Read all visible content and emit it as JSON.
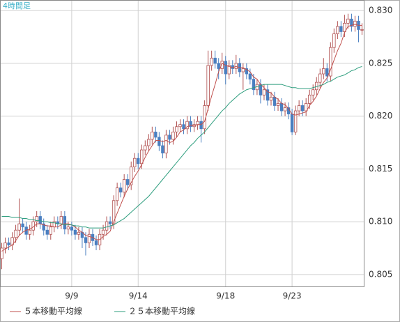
{
  "chart_data": {
    "type": "candlestick",
    "title": "4時間足",
    "categories": [
      null,
      null,
      null,
      null,
      null,
      null,
      null,
      null,
      null,
      null,
      null,
      null,
      null,
      null,
      null,
      null,
      null,
      null,
      null,
      null,
      "9/9",
      null,
      null,
      null,
      null,
      null,
      null,
      null,
      null,
      null,
      null,
      null,
      null,
      null,
      null,
      null,
      null,
      null,
      null,
      "9/14",
      null,
      null,
      null,
      null,
      null,
      null,
      null,
      null,
      null,
      null,
      null,
      null,
      null,
      null,
      null,
      null,
      null,
      null,
      null,
      null,
      null,
      null,
      null,
      null,
      "9/18",
      null,
      null,
      null,
      null,
      null,
      null,
      null,
      null,
      null,
      null,
      null,
      null,
      null,
      null,
      null,
      null,
      null,
      null,
      "9/23",
      null,
      null,
      null,
      null,
      null,
      null,
      null,
      null,
      null,
      null,
      null,
      null,
      null,
      null,
      null,
      null,
      null,
      null,
      null,
      null
    ],
    "ohlc": [
      [
        0.8065,
        0.808,
        0.8055,
        0.8075
      ],
      [
        0.8075,
        0.8085,
        0.807,
        0.808
      ],
      [
        0.808,
        0.8085,
        0.8073,
        0.8078
      ],
      [
        0.8078,
        0.809,
        0.8073,
        0.8085
      ],
      [
        0.8085,
        0.8097,
        0.808,
        0.8092
      ],
      [
        0.8092,
        0.8122,
        0.8087,
        0.8098
      ],
      [
        0.8098,
        0.8103,
        0.809,
        0.8095
      ],
      [
        0.8095,
        0.81,
        0.8083,
        0.8088
      ],
      [
        0.8088,
        0.8097,
        0.8083,
        0.8092
      ],
      [
        0.8092,
        0.8105,
        0.8087,
        0.81
      ],
      [
        0.81,
        0.811,
        0.8095,
        0.8105
      ],
      [
        0.8105,
        0.811,
        0.8093,
        0.8098
      ],
      [
        0.8098,
        0.8103,
        0.8087,
        0.8092
      ],
      [
        0.8092,
        0.8097,
        0.8083,
        0.8088
      ],
      [
        0.8088,
        0.81,
        0.8083,
        0.8095
      ],
      [
        0.8095,
        0.8105,
        0.809,
        0.81
      ],
      [
        0.81,
        0.8105,
        0.8093,
        0.8098
      ],
      [
        0.8098,
        0.811,
        0.8093,
        0.8105
      ],
      [
        0.8105,
        0.811,
        0.8088,
        0.8093
      ],
      [
        0.8093,
        0.81,
        0.8088,
        0.8095
      ],
      [
        0.8095,
        0.81,
        0.8087,
        0.8092
      ],
      [
        0.8092,
        0.8097,
        0.8083,
        0.8088
      ],
      [
        0.8088,
        0.8095,
        0.8083,
        0.809
      ],
      [
        0.809,
        0.8095,
        0.8075,
        0.8085
      ],
      [
        0.8085,
        0.809,
        0.8068,
        0.808
      ],
      [
        0.808,
        0.8093,
        0.8075,
        0.8088
      ],
      [
        0.8088,
        0.8093,
        0.8077,
        0.8082
      ],
      [
        0.8082,
        0.8087,
        0.8073,
        0.8078
      ],
      [
        0.8078,
        0.8093,
        0.8073,
        0.8088
      ],
      [
        0.8088,
        0.8097,
        0.8083,
        0.8092
      ],
      [
        0.8092,
        0.8105,
        0.8087,
        0.81
      ],
      [
        0.81,
        0.8105,
        0.8093,
        0.8098
      ],
      [
        0.8098,
        0.8125,
        0.8093,
        0.812
      ],
      [
        0.812,
        0.8137,
        0.8115,
        0.8132
      ],
      [
        0.8132,
        0.8137,
        0.8123,
        0.8128
      ],
      [
        0.8128,
        0.8145,
        0.8123,
        0.814
      ],
      [
        0.814,
        0.8145,
        0.813,
        0.8135
      ],
      [
        0.8135,
        0.8157,
        0.813,
        0.8152
      ],
      [
        0.8152,
        0.8165,
        0.8147,
        0.816
      ],
      [
        0.816,
        0.8165,
        0.815,
        0.8155
      ],
      [
        0.8155,
        0.8173,
        0.815,
        0.8168
      ],
      [
        0.8168,
        0.8177,
        0.8163,
        0.8172
      ],
      [
        0.8172,
        0.8183,
        0.8167,
        0.8178
      ],
      [
        0.8178,
        0.819,
        0.8173,
        0.8185
      ],
      [
        0.8185,
        0.819,
        0.8175,
        0.818
      ],
      [
        0.818,
        0.8185,
        0.8167,
        0.8172
      ],
      [
        0.8172,
        0.8177,
        0.816,
        0.8165
      ],
      [
        0.8165,
        0.8187,
        0.816,
        0.8182
      ],
      [
        0.8182,
        0.8187,
        0.8173,
        0.8178
      ],
      [
        0.8178,
        0.819,
        0.8173,
        0.8185
      ],
      [
        0.8185,
        0.8195,
        0.818,
        0.819
      ],
      [
        0.819,
        0.8197,
        0.8185,
        0.8192
      ],
      [
        0.8192,
        0.8197,
        0.8183,
        0.8188
      ],
      [
        0.8188,
        0.82,
        0.8183,
        0.8195
      ],
      [
        0.8195,
        0.82,
        0.8185,
        0.819
      ],
      [
        0.819,
        0.8197,
        0.8185,
        0.8192
      ],
      [
        0.8192,
        0.82,
        0.8187,
        0.8195
      ],
      [
        0.8195,
        0.82,
        0.8175,
        0.8188
      ],
      [
        0.8188,
        0.8215,
        0.8183,
        0.821
      ],
      [
        0.821,
        0.8262,
        0.8205,
        0.8248
      ],
      [
        0.8248,
        0.8262,
        0.8243,
        0.8255
      ],
      [
        0.8255,
        0.8262,
        0.8245,
        0.825
      ],
      [
        0.825,
        0.8255,
        0.8235,
        0.8245
      ],
      [
        0.8245,
        0.826,
        0.824,
        0.8252
      ],
      [
        0.8252,
        0.8257,
        0.823,
        0.824
      ],
      [
        0.824,
        0.8253,
        0.8235,
        0.8248
      ],
      [
        0.8248,
        0.8253,
        0.824,
        0.8245
      ],
      [
        0.8245,
        0.8258,
        0.824,
        0.825
      ],
      [
        0.825,
        0.8255,
        0.8237,
        0.8242
      ],
      [
        0.8242,
        0.825,
        0.8225,
        0.8245
      ],
      [
        0.8245,
        0.825,
        0.8235,
        0.824
      ],
      [
        0.824,
        0.8245,
        0.823,
        0.8235
      ],
      [
        0.8235,
        0.824,
        0.822,
        0.8225
      ],
      [
        0.8225,
        0.8235,
        0.822,
        0.823
      ],
      [
        0.823,
        0.8235,
        0.8212,
        0.822
      ],
      [
        0.822,
        0.823,
        0.8215,
        0.8225
      ],
      [
        0.8225,
        0.823,
        0.821,
        0.8215
      ],
      [
        0.8215,
        0.8223,
        0.821,
        0.8218
      ],
      [
        0.8218,
        0.8223,
        0.8205,
        0.821
      ],
      [
        0.821,
        0.8217,
        0.8205,
        0.8212
      ],
      [
        0.8212,
        0.8217,
        0.82,
        0.8205
      ],
      [
        0.8205,
        0.8213,
        0.82,
        0.8208
      ],
      [
        0.8208,
        0.8213,
        0.8197,
        0.8202
      ],
      [
        0.8202,
        0.8207,
        0.8182,
        0.8185
      ],
      [
        0.8185,
        0.821,
        0.8182,
        0.8205
      ],
      [
        0.8205,
        0.8215,
        0.82,
        0.821
      ],
      [
        0.821,
        0.8215,
        0.82,
        0.8205
      ],
      [
        0.8205,
        0.8217,
        0.82,
        0.8212
      ],
      [
        0.8212,
        0.8225,
        0.8207,
        0.822
      ],
      [
        0.822,
        0.823,
        0.8215,
        0.8225
      ],
      [
        0.8225,
        0.8237,
        0.822,
        0.8232
      ],
      [
        0.8232,
        0.8245,
        0.8227,
        0.824
      ],
      [
        0.824,
        0.8255,
        0.8235,
        0.8245
      ],
      [
        0.8245,
        0.825,
        0.8233,
        0.8238
      ],
      [
        0.8238,
        0.827,
        0.8233,
        0.8265
      ],
      [
        0.8265,
        0.8283,
        0.826,
        0.8278
      ],
      [
        0.8278,
        0.829,
        0.8273,
        0.8285
      ],
      [
        0.8285,
        0.829,
        0.8275,
        0.828
      ],
      [
        0.828,
        0.8296,
        0.8275,
        0.8288
      ],
      [
        0.8288,
        0.8297,
        0.8283,
        0.8292
      ],
      [
        0.8292,
        0.8297,
        0.828,
        0.8285
      ],
      [
        0.8285,
        0.8295,
        0.828,
        0.829
      ],
      [
        0.829,
        0.8295,
        0.827,
        0.8282
      ],
      [
        0.8282,
        0.8288,
        0.8277,
        0.8282
      ]
    ],
    "up_color": "#b05050",
    "down_color": "#4a7fc0",
    "series": [
      {
        "name": "５本移動平均線",
        "color": "#c0504d",
        "values": [
          0.8072,
          0.8074,
          0.8076,
          0.8078,
          0.8082,
          0.8087,
          0.809,
          0.8092,
          0.8093,
          0.8095,
          0.8098,
          0.8098,
          0.8097,
          0.8096,
          0.8096,
          0.8095,
          0.8095,
          0.8097,
          0.8098,
          0.8098,
          0.8097,
          0.8095,
          0.8092,
          0.809,
          0.8087,
          0.8086,
          0.8085,
          0.8083,
          0.8083,
          0.8086,
          0.8088,
          0.8091,
          0.81,
          0.8108,
          0.8116,
          0.8124,
          0.8131,
          0.8137,
          0.8143,
          0.8148,
          0.8154,
          0.8161,
          0.8167,
          0.8172,
          0.8177,
          0.8177,
          0.8176,
          0.8177,
          0.8175,
          0.8176,
          0.818,
          0.8185,
          0.8187,
          0.819,
          0.8191,
          0.8191,
          0.8192,
          0.8192,
          0.8195,
          0.8207,
          0.8219,
          0.823,
          0.8242,
          0.825,
          0.8248,
          0.8247,
          0.8246,
          0.8247,
          0.8246,
          0.8246,
          0.8244,
          0.8242,
          0.8237,
          0.8235,
          0.823,
          0.8227,
          0.8223,
          0.8222,
          0.8218,
          0.8216,
          0.8212,
          0.8211,
          0.8207,
          0.8202,
          0.8201,
          0.8202,
          0.8203,
          0.8204,
          0.821,
          0.8214,
          0.8219,
          0.8226,
          0.8232,
          0.8236,
          0.8244,
          0.8253,
          0.8262,
          0.8269,
          0.8279,
          0.8285,
          0.8286,
          0.8287,
          0.8286,
          0.8286
        ]
      },
      {
        "name": "２５本移動平均線",
        "color": "#2e9e7e",
        "values": [
          0.8105,
          0.8105,
          0.8105,
          0.8104,
          0.8104,
          0.8104,
          0.8103,
          0.8103,
          0.8102,
          0.8102,
          0.8101,
          0.8101,
          0.81,
          0.81,
          0.8099,
          0.8099,
          0.8098,
          0.8098,
          0.8097,
          0.8097,
          0.8097,
          0.8096,
          0.8096,
          0.8095,
          0.8095,
          0.8094,
          0.8094,
          0.8094,
          0.8094,
          0.8094,
          0.8095,
          0.8096,
          0.8097,
          0.8099,
          0.8101,
          0.8103,
          0.8106,
          0.8109,
          0.8112,
          0.8115,
          0.8118,
          0.8121,
          0.8124,
          0.8128,
          0.8132,
          0.8136,
          0.814,
          0.8144,
          0.8148,
          0.8152,
          0.8156,
          0.816,
          0.8164,
          0.8168,
          0.8172,
          0.8175,
          0.8179,
          0.8182,
          0.8185,
          0.8189,
          0.8193,
          0.8197,
          0.8201,
          0.8205,
          0.8208,
          0.8212,
          0.8215,
          0.8218,
          0.8221,
          0.8223,
          0.8225,
          0.8226,
          0.8227,
          0.8228,
          0.8229,
          0.823,
          0.823,
          0.823,
          0.823,
          0.823,
          0.823,
          0.8229,
          0.8228,
          0.8227,
          0.8227,
          0.8226,
          0.8226,
          0.8226,
          0.8226,
          0.8227,
          0.8228,
          0.8229,
          0.823,
          0.8232,
          0.8233,
          0.8235,
          0.8237,
          0.8238,
          0.8239,
          0.8241,
          0.8243,
          0.8244,
          0.8246,
          0.8247
        ]
      }
    ],
    "ylim": [
      0.8038,
      0.831
    ],
    "yticks": [
      0.805,
      {
        "value": 0.81,
        "label": "0.810"
      },
      0.815,
      {
        "value": 0.82,
        "label": "0.820"
      },
      0.825,
      {
        "value": 0.83,
        "label": "0.830"
      }
    ],
    "grid": true
  }
}
